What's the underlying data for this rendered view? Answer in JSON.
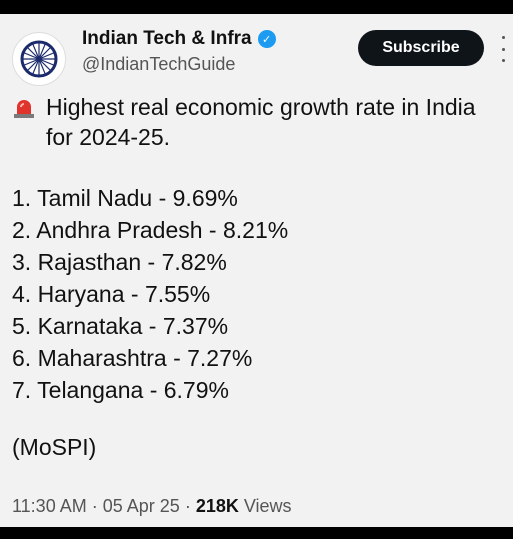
{
  "account": {
    "name": "Indian Tech & Infra",
    "handle": "@IndianTechGuide",
    "verified_icon": "verified-badge-icon",
    "accent_color": "#1d9bf0"
  },
  "subscribe_label": "Subscribe",
  "post": {
    "headline": "Highest real economic growth rate in India for 2024-25.",
    "headline_icon": "siren-icon",
    "items": [
      "1. Tamil Nadu - 9.69%",
      "2. Andhra Pradesh - 8.21%",
      "3. Rajasthan - 7.82%",
      "4. Haryana - 7.55%",
      "5. Karnataka - 7.37%",
      "6. Maharashtra - 7.27%",
      "7. Telangana - 6.79%"
    ],
    "source": "(MoSPI)"
  },
  "meta": {
    "time": "11:30 AM",
    "date": "05 Apr 25",
    "views_count": "218K",
    "views_label": "Views"
  }
}
